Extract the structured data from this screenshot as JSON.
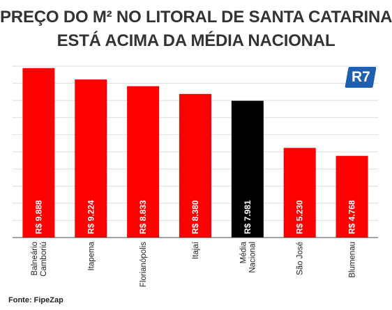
{
  "header": {
    "title_line1": "PREÇO DO M² NO LITORAL DE SANTA CATARINA",
    "title_line2": "ESTÁ ACIMA DA MÉDIA NACIONAL"
  },
  "logo_text": "R7",
  "source": "Fonte: FipeZap",
  "colors": {
    "bar": "#ff0000",
    "highlight": "#000000",
    "grid": "#dddddd",
    "logo": "#1e5fb0"
  },
  "chart_data": {
    "type": "bar",
    "title": "PREÇO DO M² NO LITORAL DE SANTA CATARINA ESTÁ ACIMA DA MÉDIA NACIONAL",
    "categories": [
      "Balneário Camboriú",
      "Itapema",
      "Florianópolis",
      "Itajaí",
      "Média Nacional",
      "São José",
      "Blumenau"
    ],
    "values": [
      9888,
      9224,
      8833,
      8380,
      7981,
      5230,
      4768
    ],
    "value_labels": [
      "R$ 9.888",
      "R$ 9.224",
      "R$ 8.833",
      "R$ 8.380",
      "R$ 7.981",
      "R$ 5.230",
      "R$ 4.768"
    ],
    "category_label_lines": [
      [
        "Balneário",
        "Camboriú"
      ],
      [
        "Itapema"
      ],
      [
        "Florianópolis"
      ],
      [
        "Itajaí"
      ],
      [
        "Média",
        "Nacional"
      ],
      [
        "São José"
      ],
      [
        "Blumenau"
      ]
    ],
    "highlight_index": 4,
    "ylim": [
      0,
      10000
    ],
    "grid": true,
    "y_tick_labels_shown": false,
    "xlabel": "",
    "ylabel": ""
  }
}
